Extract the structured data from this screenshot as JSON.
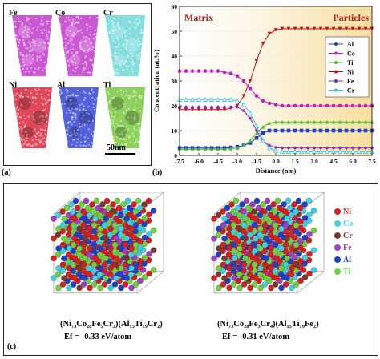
{
  "panel_a": {
    "label": "(a)",
    "scale_bar": "50nm",
    "maps": [
      {
        "element": "Fe",
        "color": "#c23bcb"
      },
      {
        "element": "Co",
        "color": "#c23bcb"
      },
      {
        "element": "Cr",
        "color": "#6fd8d8"
      },
      {
        "element": "Ni",
        "color": "#d8283d"
      },
      {
        "element": "Al",
        "color": "#3545d6"
      },
      {
        "element": "Ti",
        "color": "#78c93c"
      }
    ]
  },
  "panel_b": {
    "label": "(b)"
  },
  "chart_data": {
    "type": "line",
    "title": "",
    "xlabel": "Distance (nm)",
    "ylabel": "Concentration (at.%)",
    "xlim": [
      -7.5,
      7.5
    ],
    "ylim": [
      0,
      60
    ],
    "xticks": [
      "-7.5",
      "-6.0",
      "-4.5",
      "-3.0",
      "-1.5",
      "0.0",
      "1.5",
      "3.0",
      "4.5",
      "6.0",
      "7.5"
    ],
    "yticks": [
      "0",
      "10",
      "20",
      "30",
      "40",
      "50",
      "60"
    ],
    "region_labels": {
      "left": "Matrix",
      "right": "Particles"
    },
    "legend_position": "right",
    "x": [
      -7.5,
      -7.0,
      -6.5,
      -6.0,
      -5.5,
      -5.0,
      -4.5,
      -4.0,
      -3.5,
      -3.0,
      -2.5,
      -2.0,
      -1.5,
      -1.0,
      -0.5,
      0.0,
      0.5,
      1.0,
      1.5,
      2.0,
      2.5,
      3.0,
      3.5,
      4.0,
      4.5,
      5.0,
      5.5,
      6.0,
      6.5,
      7.0,
      7.5
    ],
    "series": [
      {
        "name": "Al",
        "color": "#1f3fbf",
        "marker": "square",
        "values": [
          3,
          3,
          3,
          3,
          3,
          3,
          3,
          3,
          3.2,
          3.5,
          4,
          5,
          7,
          9,
          10,
          10,
          10,
          10,
          10,
          10,
          10,
          10,
          10,
          10,
          10,
          10,
          10,
          10,
          10,
          10,
          10
        ]
      },
      {
        "name": "Co",
        "color": "#c020c0",
        "marker": "circle",
        "values": [
          34,
          34,
          34,
          34,
          34,
          34,
          34,
          33.5,
          33,
          32,
          30,
          27,
          24,
          22,
          21,
          20.5,
          20,
          20,
          20,
          20,
          20,
          20,
          20,
          20,
          20,
          20,
          20,
          20,
          20,
          20,
          20
        ]
      },
      {
        "name": "Ti",
        "color": "#4fbf2a",
        "marker": "triangle-up",
        "values": [
          2.5,
          2.5,
          2.5,
          2.5,
          2.5,
          2.5,
          2.5,
          2.5,
          2.7,
          3,
          4,
          6,
          9,
          11.5,
          13,
          13.5,
          13.5,
          13.5,
          13.5,
          13.5,
          13.5,
          13.5,
          13.5,
          13.5,
          13.5,
          13.5,
          13.5,
          13.5,
          13.5,
          13.5,
          13.5
        ]
      },
      {
        "name": "Ni",
        "color": "#cc1010",
        "marker": "triangle-down",
        "values": [
          18.5,
          18.5,
          18.5,
          18.5,
          18.5,
          18.5,
          18.5,
          18.5,
          19,
          20,
          24,
          30,
          38,
          45,
          49,
          50.5,
          51,
          51,
          51,
          51,
          51,
          51,
          51,
          51,
          51,
          51,
          51,
          51,
          51,
          51,
          51
        ]
      },
      {
        "name": "Fe",
        "color": "#8a2bb0",
        "marker": "diamond",
        "values": [
          19.5,
          19.5,
          19.5,
          19.5,
          19.5,
          19.5,
          19.5,
          19.5,
          19.5,
          19.5,
          18,
          15,
          10,
          6,
          4,
          3.2,
          3,
          3,
          3,
          3,
          3,
          3,
          3,
          3,
          3,
          3,
          3,
          3,
          3,
          3,
          3
        ]
      },
      {
        "name": "Cr",
        "color": "#33c6e6",
        "marker": "triangle-up-open",
        "values": [
          22.5,
          22.5,
          22.5,
          22.5,
          22.5,
          22.5,
          22.5,
          22.5,
          22.5,
          22,
          20.5,
          17,
          12,
          6,
          3,
          2,
          1.5,
          1.5,
          1.5,
          1.5,
          1.5,
          1.5,
          1.5,
          1.5,
          1.5,
          1.5,
          1.5,
          1.5,
          1.5,
          1.5,
          1.5
        ]
      }
    ]
  },
  "panel_c": {
    "label": "(c)",
    "structures": [
      {
        "formula": "(Ni₇₃Co₂₈Fe₅Cr₂)(Al₁₅Ti₁₉Cr₂)",
        "ef": "Ef = -0.33 eV/atom"
      },
      {
        "formula": "(Ni₇₃Co₂₈Fe₃Cr₄)(Al₁₅Ti₁₉Fe₂)",
        "ef": "Ef = -0.31 eV/atom"
      }
    ],
    "legend": [
      {
        "label": "Ni",
        "color": "#d42020"
      },
      {
        "label": "Co",
        "color": "#40d0e0"
      },
      {
        "label": "Cr",
        "color": "#7a3a2a"
      },
      {
        "label": "Fe",
        "color": "#a040c0"
      },
      {
        "label": "Al",
        "color": "#2040c8"
      },
      {
        "label": "Ti",
        "color": "#70d040"
      }
    ]
  }
}
